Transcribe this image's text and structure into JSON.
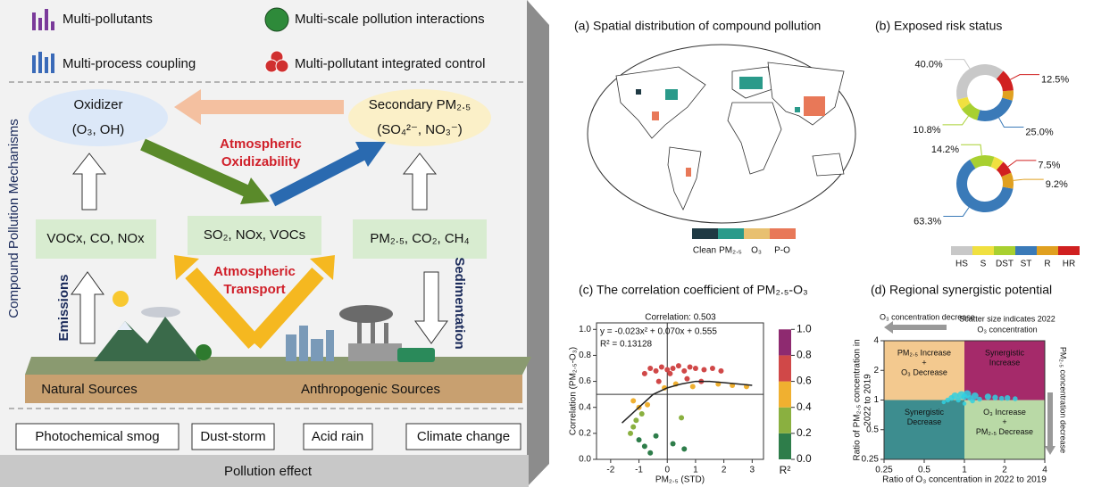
{
  "legend": [
    "Multi-pollutants",
    "Multi-scale pollution interactions",
    "Multi-process coupling",
    "Multi-pollutant integrated control"
  ],
  "side_label": "Compound Pollution Mechanisms",
  "oxidizer": {
    "title": "Oxidizer",
    "species": "(O₃, OH)"
  },
  "secondary": {
    "title": "Secondary PM₂.₅",
    "species": "(SO₄²⁻, NO₃⁻)"
  },
  "oxidizability": [
    "Atmospheric",
    "Oxidizability"
  ],
  "boxes": [
    "VOCx, CO, NOx",
    "SO₂, NOx, VOCs",
    "PM₂.₅, CO₂, CH₄"
  ],
  "transport": [
    "Atmospheric",
    "Transport"
  ],
  "emissions": "Emissions",
  "sedimentation": "Sedimentation",
  "sources": [
    "Natural Sources",
    "Anthropogenic Sources"
  ],
  "effects": [
    "Photochemical smog",
    "Dust-storm",
    "Acid rain",
    "Climate change"
  ],
  "effect_label": "Pollution effect",
  "chart_data": [
    {
      "type": "map",
      "title": "(a) Spatial distribution of compound pollution",
      "categories": [
        "Clean",
        "PM₂.₅",
        "O₃",
        "P-O"
      ],
      "colors": [
        "#1f3a44",
        "#2a9a8a",
        "#e8c070",
        "#e87858"
      ]
    },
    {
      "type": "donut",
      "title": "(b) Exposed risk status",
      "categories": [
        "HS",
        "S",
        "DST",
        "ST",
        "R",
        "HR"
      ],
      "colors": [
        "#c8c8c8",
        "#f0e040",
        "#a8d030",
        "#3a7ab8",
        "#e0a020",
        "#d02020"
      ],
      "series": [
        {
          "values": [
            40.0,
            5.9,
            10.8,
            25.0,
            5.8,
            12.5
          ],
          "value_labels": [
            "40.0%",
            null,
            "10.8%",
            "25.0%",
            null,
            "12.5%"
          ]
        },
        {
          "values": [
            0,
            5.8,
            14.2,
            63.3,
            9.2,
            7.5
          ],
          "value_labels": [
            null,
            null,
            "14.2%",
            "63.3%",
            "9.2%",
            "7.5%"
          ]
        }
      ]
    },
    {
      "type": "scatter",
      "title": "(c) The correlation coefficient of PM₂.₅-O₃",
      "xlabel": "PM₂.₅ (STD)",
      "ylabel": "Correlation (PM₂.₅-O₃)",
      "annotations": [
        "Correlation: 0.503",
        "y = -0.023x² + 0.070x + 0.555",
        "R² = 0.13128"
      ],
      "x": [
        -0.6,
        -0.4,
        -0.2,
        0,
        0.2,
        0.4,
        0.6,
        0.8,
        1.0,
        1.3,
        1.6,
        1.9,
        -0.8,
        0.1,
        -0.3,
        0.3,
        0.7,
        1.2,
        1.8,
        2.3,
        2.8,
        0.9,
        -0.1,
        -1.2,
        -1.0,
        -0.9,
        -1.1,
        -0.7,
        0.5,
        -1.3,
        -1.0,
        -0.8,
        -1.2,
        -0.4,
        0.2,
        -0.6,
        0.6
      ],
      "values": [
        0.7,
        0.68,
        0.71,
        0.69,
        0.7,
        0.72,
        0.68,
        0.71,
        0.7,
        0.69,
        0.7,
        0.68,
        0.66,
        0.66,
        0.6,
        0.58,
        0.62,
        0.6,
        0.58,
        0.57,
        0.56,
        0.56,
        0.55,
        0.45,
        0.4,
        0.35,
        0.3,
        0.42,
        0.32,
        0.2,
        0.15,
        0.1,
        0.25,
        0.18,
        0.12,
        0.05,
        0.08
      ],
      "fit": {
        "x": [
          -1.6,
          -1,
          -0.5,
          0,
          0.5,
          1,
          1.5,
          2,
          2.5,
          3
        ],
        "values": [
          0.28,
          0.4,
          0.5,
          0.55,
          0.58,
          0.6,
          0.6,
          0.59,
          0.58,
          0.57
        ],
        "color": "#222222"
      },
      "xlim": [
        -2.5,
        3.4
      ],
      "ylim": [
        0,
        1.05
      ],
      "xticks": [
        -2,
        -1,
        0,
        1,
        2,
        3
      ],
      "yticks": [
        {
          "value": 0,
          "label": "0.0"
        },
        0.2,
        0.4,
        0.6,
        0.8,
        {
          "value": 1,
          "label": "1.0"
        }
      ],
      "hline": 0.5,
      "vline": 0,
      "colorbar": {
        "label": "R²",
        "ticks": [
          {
            "value": 0,
            "label": "0.0"
          },
          0.2,
          0.4,
          0.6,
          0.8,
          {
            "value": 1,
            "label": "1.0"
          }
        ],
        "colors": [
          "#2e7d4a",
          "#8ab040",
          "#f0b030",
          "#d04848",
          "#8e2a70"
        ]
      }
    },
    {
      "type": "bubble",
      "title": "(d) Regional synergistic potential",
      "xlabel": "Ratio of O₃ concentration in 2022 to 2019",
      "ylabel": [
        "Ratio of PM₂.₅ concentration in",
        "2022 to 2019"
      ],
      "top_arrow": "O₃ concentration decrease",
      "size_note": [
        "Scatter size indicates 2022",
        "O₃ concentration"
      ],
      "right_arrow": "PM₂.₅ concentration decrease",
      "log_scale": true,
      "color": "#30d0e0",
      "xlim": [
        0.25,
        4
      ],
      "ylim": [
        0.25,
        4
      ],
      "xticks": [
        0.25,
        0.5,
        1,
        2,
        4
      ],
      "yticks": [
        0.25,
        0.5,
        1,
        2,
        4
      ],
      "quadrant_split": 1,
      "quadrants": [
        {
          "lines": [
            "PM₂.₅ Increase",
            "+",
            "O₃ Decrease"
          ],
          "color": "#f3c98f"
        },
        {
          "lines": [
            "Synergistic",
            "Increase"
          ],
          "color": "#a52a6a"
        },
        {
          "lines": [
            "Synergistic",
            "Decrease"
          ],
          "color": "#3d8d8f"
        },
        {
          "lines": [
            "O₃ Increase",
            "+",
            "PM₂.₅ Decrease"
          ],
          "color": "#b9d9a6"
        }
      ],
      "x": [
        0.8,
        0.85,
        0.9,
        0.95,
        1.0,
        1.05,
        1.1,
        1.2,
        1.3,
        1.5,
        1.7,
        1.9,
        2.1,
        2.4,
        0.7,
        0.75,
        1.0,
        1.15
      ],
      "values": [
        1.05,
        1.1,
        1.0,
        1.12,
        1.08,
        1.15,
        1.05,
        1.1,
        1.02,
        1.08,
        1.06,
        1.04,
        1.05,
        1.03,
        0.95,
        1.0,
        0.92,
        0.98
      ],
      "sizes": [
        4,
        6,
        3,
        8,
        5,
        7,
        4,
        6,
        3,
        5,
        4,
        3,
        4,
        3,
        2,
        3,
        2,
        3
      ]
    }
  ]
}
